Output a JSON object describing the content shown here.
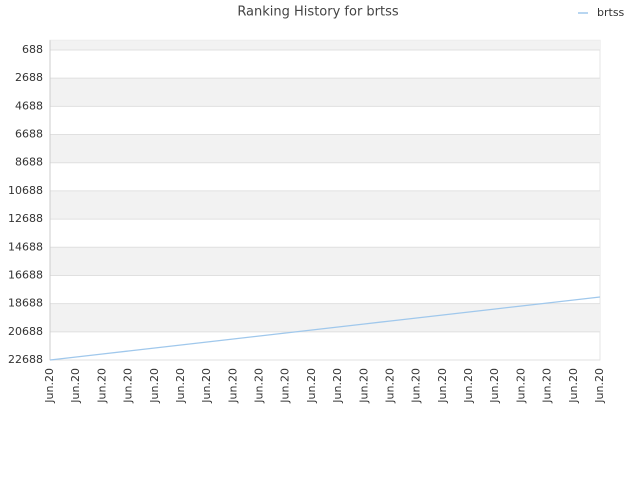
{
  "chart_data": {
    "type": "line",
    "title": "Ranking History for brtss",
    "categories": [
      "Jun.20",
      "Jun.20",
      "Jun.20",
      "Jun.20",
      "Jun.20",
      "Jun.20",
      "Jun.20",
      "Jun.20",
      "Jun.20",
      "Jun.20",
      "Jun.20",
      "Jun.20",
      "Jun.20",
      "Jun.20",
      "Jun.20",
      "Jun.20",
      "Jun.20",
      "Jun.20",
      "Jun.20",
      "Jun.20",
      "Jun.20",
      "Jun.20"
    ],
    "series": [
      {
        "name": "brtss",
        "color": "#a0c8ec",
        "values": [
          22688,
          22475,
          22262,
          22049,
          21836,
          21623,
          21410,
          21197,
          20984,
          20771,
          20558,
          20345,
          20132,
          19919,
          19706,
          19493,
          19280,
          19067,
          18854,
          18641,
          18428,
          18215
        ]
      }
    ],
    "ylim": [
      22688,
      0
    ],
    "yticks": [
      688,
      2688,
      4688,
      6688,
      8688,
      10688,
      12688,
      14688,
      16688,
      18688,
      20688,
      22688
    ],
    "grid": true,
    "legend": "top-right"
  }
}
